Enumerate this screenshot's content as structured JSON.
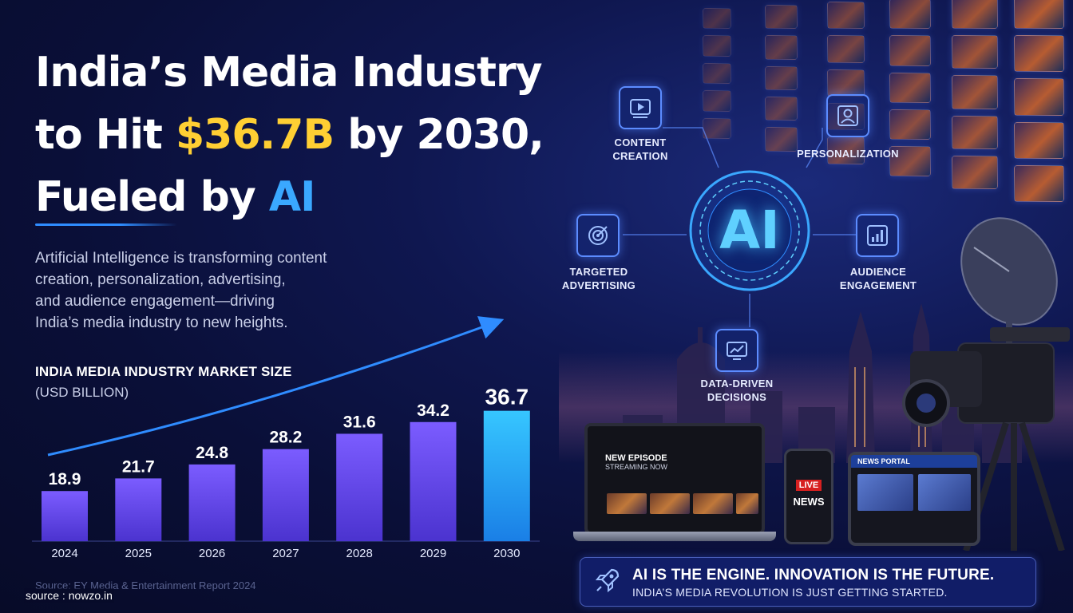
{
  "headline": {
    "line1": "India’s Media Industry",
    "line2_before": "to Hit ",
    "line2_highlight": "$36.7B",
    "line2_after": " by 2030,",
    "line3_before": "Fueled by ",
    "line3_highlight": "AI"
  },
  "intro_lines": [
    "Artificial Intelligence is transforming content",
    "creation, personalization, advertising,",
    "and audience engagement—driving",
    "India’s media industry to new heights."
  ],
  "chart_data": {
    "type": "bar",
    "title": "INDIA MEDIA INDUSTRY MARKET SIZE",
    "subtitle": "(USD BILLION)",
    "categories": [
      "2024",
      "2025",
      "2026",
      "2027",
      "2028",
      "2029",
      "2030"
    ],
    "values": [
      18.9,
      21.7,
      24.8,
      28.2,
      31.6,
      34.2,
      36.7
    ],
    "value_labels": [
      "18.9",
      "21.7",
      "24.8",
      "28.2",
      "31.6",
      "34.2",
      "36.7"
    ],
    "highlighted_category": "2030",
    "grid": false,
    "legend": "none",
    "trend_arrow": true,
    "colors": {
      "bar_from": "#7b5cff",
      "bar_to": "#4b33cf",
      "highlight_from": "#36c6ff",
      "highlight_to": "#1a7fe6",
      "arrow": "#2f8cff"
    }
  },
  "source": {
    "chart_source": "Source: EY Media & Entertainment Report 2024",
    "watermark": "source : nowzo.in"
  },
  "ai_hub": {
    "center": "AI",
    "nodes": [
      {
        "id": "content",
        "label": [
          "CONTENT",
          "CREATION"
        ],
        "icon": "play-icon"
      },
      {
        "id": "personalization",
        "label": [
          "PERSONALIZATION"
        ],
        "icon": "user-icon"
      },
      {
        "id": "advertising",
        "label": [
          "TARGETED",
          "ADVERTISING"
        ],
        "icon": "target-icon"
      },
      {
        "id": "engagement",
        "label": [
          "AUDIENCE",
          "ENGAGEMENT"
        ],
        "icon": "bar-chart-icon"
      },
      {
        "id": "data",
        "label": [
          "DATA-DRIVEN",
          "DECISIONS"
        ],
        "icon": "chart-monitor-icon"
      }
    ]
  },
  "devices": {
    "laptop_title": "NEW EPISODE",
    "laptop_sub": "STREAMING NOW",
    "phone_live": "LIVE",
    "phone_news": "NEWS",
    "tablet_title": "NEWS PORTAL"
  },
  "banner": {
    "main": "AI IS THE ENGINE. INNOVATION IS THE FUTURE.",
    "sub": "INDIA’S MEDIA REVOLUTION IS JUST GETTING STARTED.",
    "icon": "rocket-icon"
  }
}
